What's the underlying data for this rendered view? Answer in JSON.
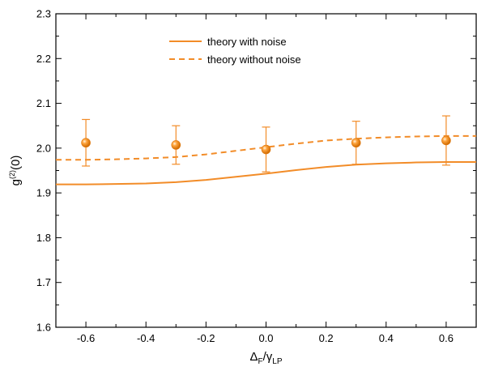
{
  "chart_data": {
    "type": "line",
    "xlabel": "ΔF/γLP",
    "ylabel": "g(2)(0)",
    "xlim": [
      -0.7,
      0.7
    ],
    "ylim": [
      1.6,
      2.3
    ],
    "x_ticks": [
      -0.6,
      -0.4,
      -0.2,
      0.0,
      0.2,
      0.4,
      0.6
    ],
    "x_tick_labels": [
      "-0.6",
      "-0.4",
      "-0.2",
      "0.0",
      "0.2",
      "0.4",
      "0.6"
    ],
    "y_ticks": [
      1.6,
      1.7,
      1.8,
      1.9,
      2.0,
      2.1,
      2.2,
      2.3
    ],
    "y_tick_labels": [
      "1.6",
      "1.7",
      "1.8",
      "1.9",
      "2.0",
      "2.1",
      "2.2",
      "2.3"
    ],
    "grid": false,
    "legend_position": "top-center",
    "color": "#f28c28",
    "series": [
      {
        "name": "theory with noise",
        "style": "solid",
        "x": [
          -0.7,
          -0.6,
          -0.5,
          -0.4,
          -0.3,
          -0.2,
          -0.1,
          0.0,
          0.1,
          0.2,
          0.3,
          0.4,
          0.5,
          0.6,
          0.7
        ],
        "y": [
          1.919,
          1.919,
          1.92,
          1.921,
          1.924,
          1.929,
          1.936,
          1.943,
          1.951,
          1.958,
          1.963,
          1.966,
          1.968,
          1.969,
          1.969
        ]
      },
      {
        "name": "theory without noise",
        "style": "dashed",
        "x": [
          -0.7,
          -0.6,
          -0.5,
          -0.4,
          -0.3,
          -0.2,
          -0.1,
          0.0,
          0.1,
          0.2,
          0.3,
          0.4,
          0.5,
          0.6,
          0.7
        ],
        "y": [
          1.974,
          1.974,
          1.975,
          1.977,
          1.98,
          1.986,
          1.994,
          2.002,
          2.01,
          2.017,
          2.021,
          2.024,
          2.026,
          2.027,
          2.027
        ]
      }
    ],
    "points": {
      "style": "markers-with-error-bars",
      "x": [
        -0.6,
        -0.3,
        0.0,
        0.3,
        0.6
      ],
      "y": [
        2.012,
        2.007,
        1.997,
        2.012,
        2.017
      ],
      "error": [
        0.052,
        0.043,
        0.05,
        0.048,
        0.055
      ]
    }
  }
}
